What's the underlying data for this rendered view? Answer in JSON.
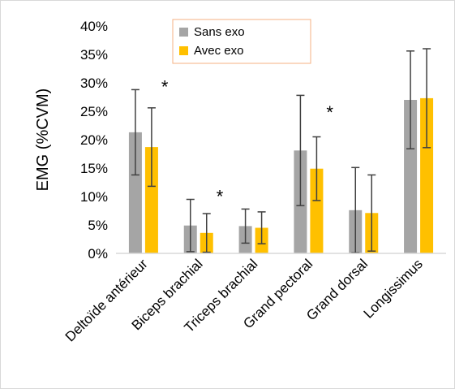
{
  "chart_data": {
    "type": "bar",
    "title": "",
    "xlabel": "",
    "ylabel": "EMG (%CVM)",
    "ylim": [
      0,
      0.4
    ],
    "yticks": [
      0,
      0.05,
      0.1,
      0.15,
      0.2,
      0.25,
      0.3,
      0.35,
      0.4
    ],
    "ytick_labels": [
      "0%",
      "5%",
      "10%",
      "15%",
      "20%",
      "25%",
      "30%",
      "35%",
      "40%"
    ],
    "grid": false,
    "legend_position": "top-center",
    "categories": [
      "Deltoïde antérieur",
      "Biceps brachial",
      "Triceps brachial",
      "Grand pectoral",
      "Grand dorsal",
      "Longissimus"
    ],
    "series": [
      {
        "name": "Sans exo",
        "color": "#a5a5a5",
        "values": [
          0.213,
          0.049,
          0.048,
          0.181,
          0.076,
          0.27
        ],
        "error": [
          0.075,
          0.046,
          0.03,
          0.097,
          0.075,
          0.086
        ]
      },
      {
        "name": "Avec exo",
        "color": "#ffc000",
        "values": [
          0.187,
          0.036,
          0.045,
          0.149,
          0.071,
          0.273
        ],
        "error": [
          0.069,
          0.034,
          0.028,
          0.056,
          0.067,
          0.087
        ]
      }
    ],
    "annotations": [
      {
        "text": "*",
        "category": "Deltoïde antérieur",
        "y": 0.295
      },
      {
        "text": "*",
        "category": "Biceps brachial",
        "y": 0.102
      },
      {
        "text": "*",
        "category": "Grand pectoral",
        "y": 0.25
      }
    ]
  }
}
